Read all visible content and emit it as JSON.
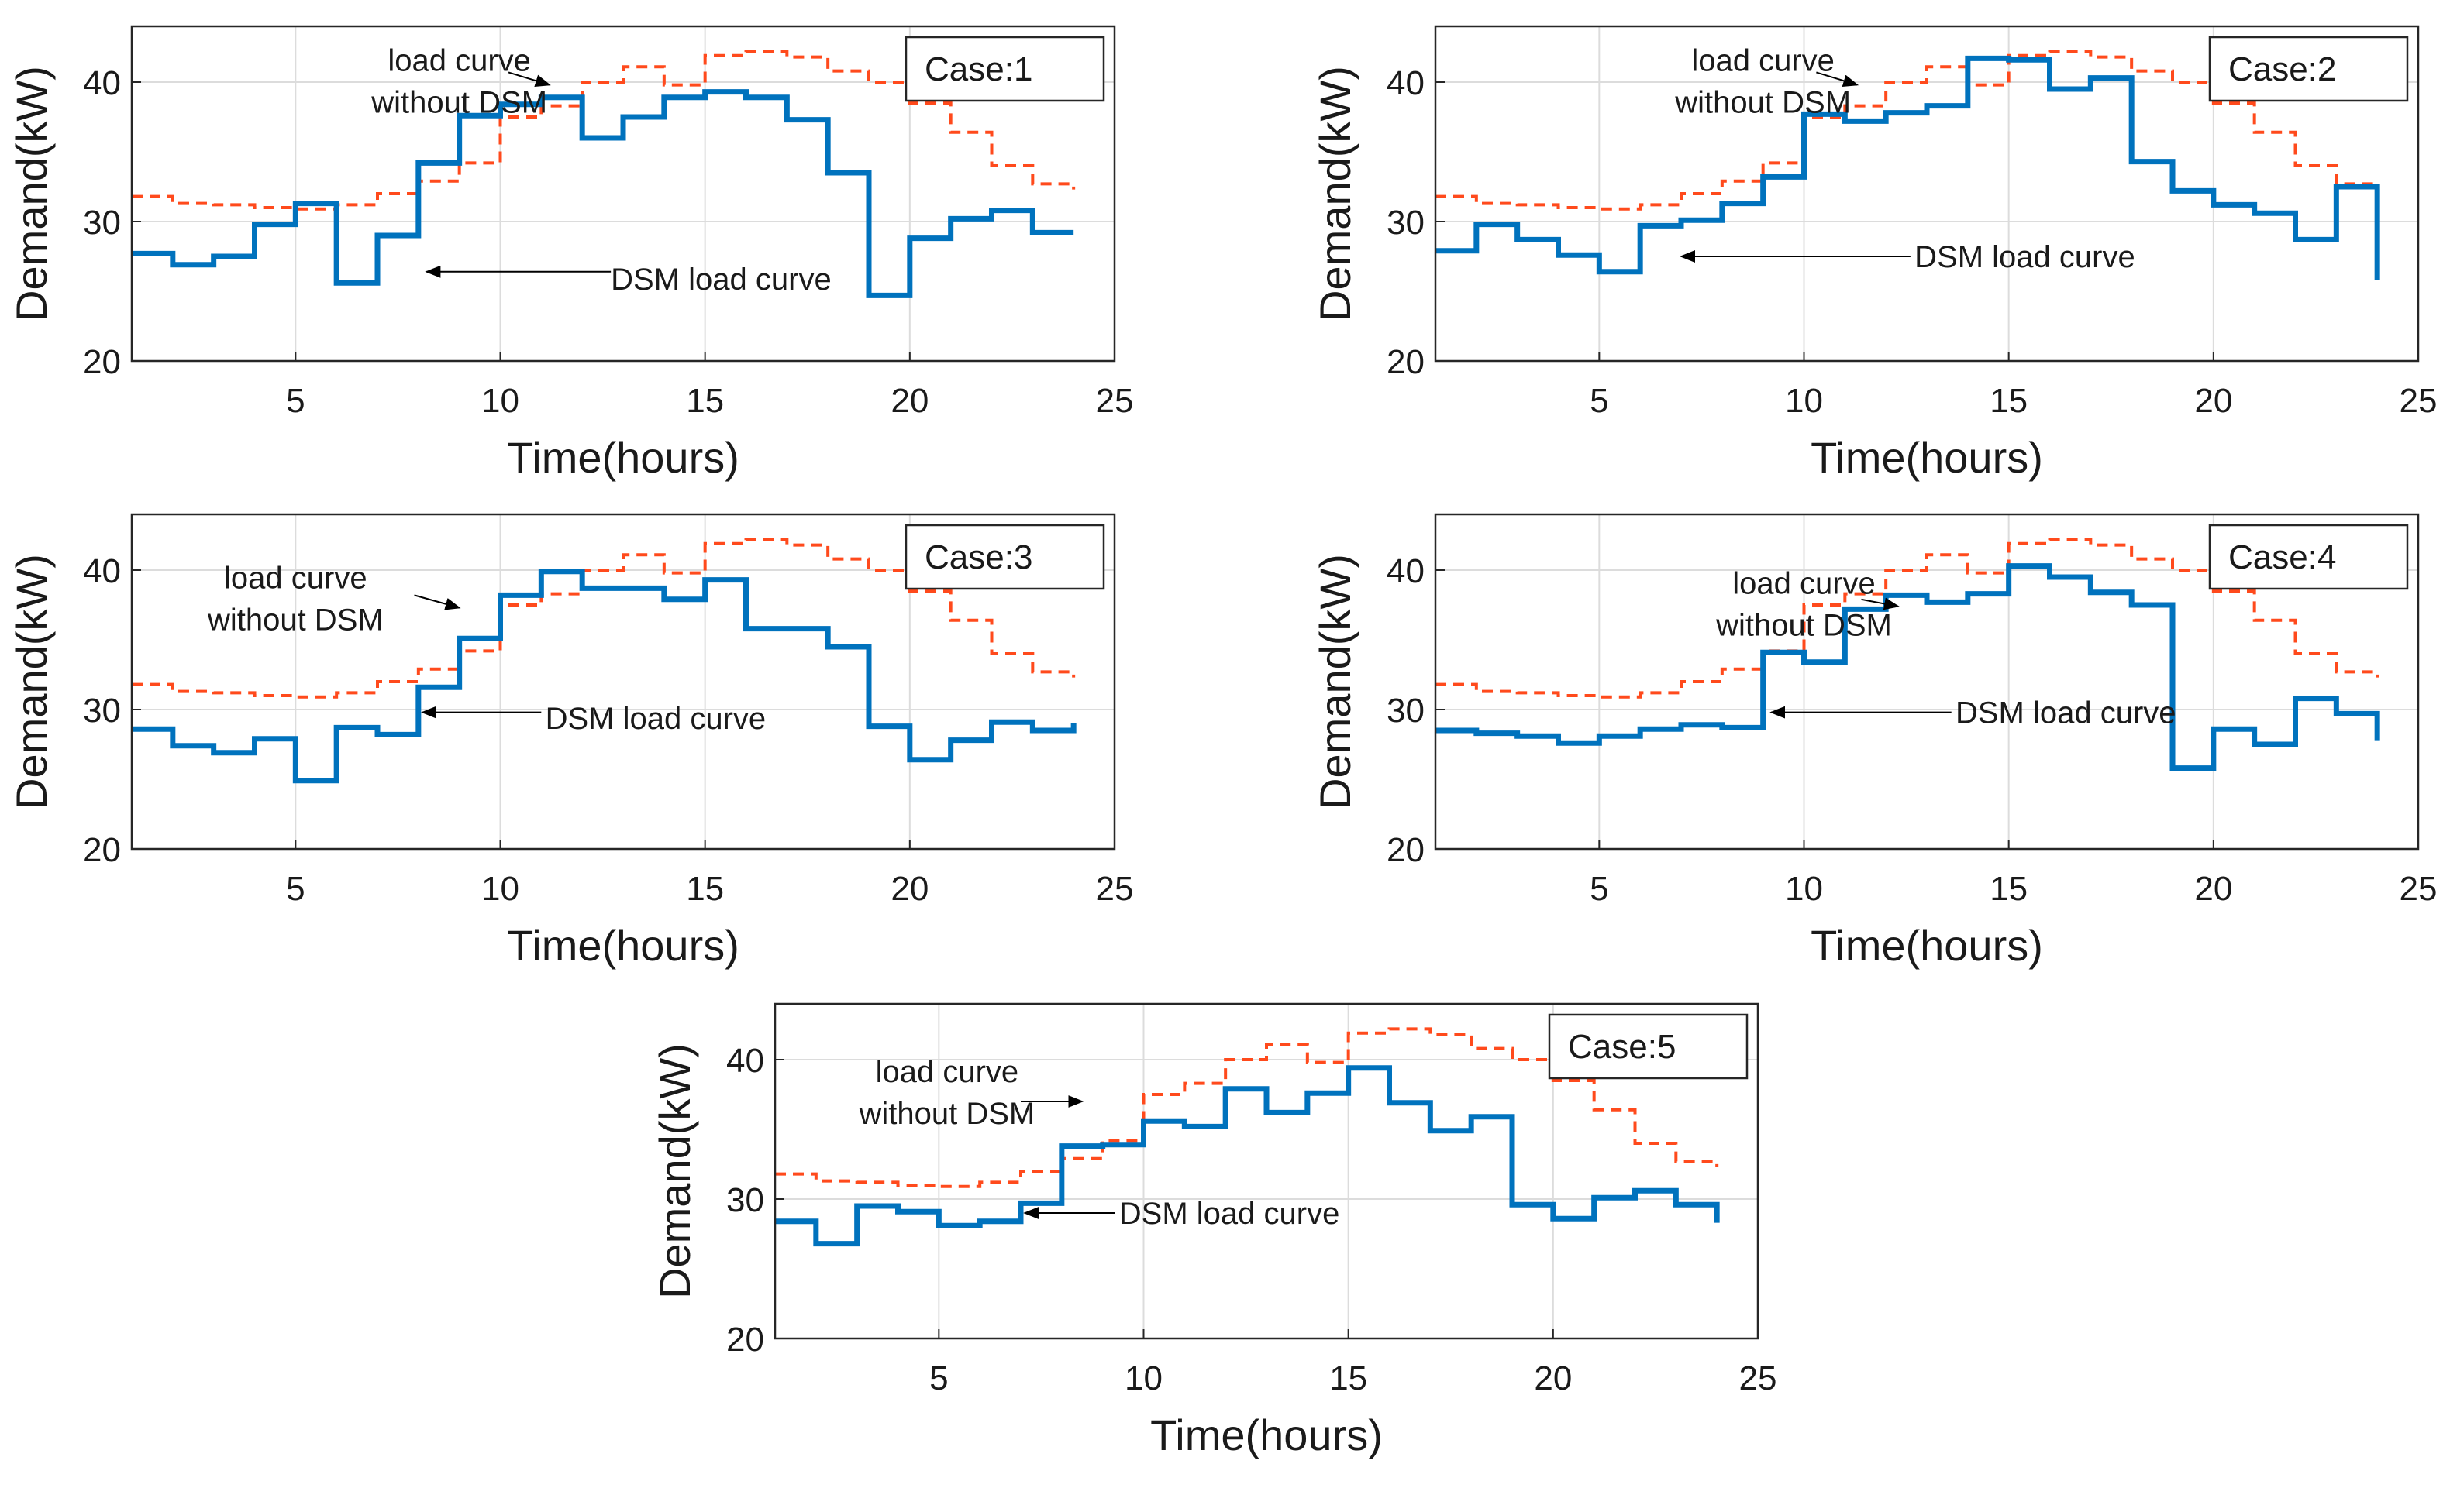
{
  "colors": {
    "without_dsm": "#ff4a1c",
    "dsm": "#0072bd",
    "grid": "#dcdcdc",
    "axis": "#262626",
    "text": "#1a1a1a"
  },
  "chart_data": [
    {
      "type": "line",
      "step": true,
      "case_label": "Case:1",
      "xlabel": "Time(hours)",
      "ylabel": "Demand(kW)",
      "xlim": [
        1,
        25
      ],
      "ylim": [
        20,
        44
      ],
      "xticks": [
        5,
        10,
        15,
        20,
        25
      ],
      "yticks": [
        20,
        30,
        40
      ],
      "grid": true,
      "annotations": {
        "without_line1": "load curve",
        "without_line2": "without DSM",
        "dsm": "DSM load curve"
      },
      "series": [
        {
          "name": "load curve without DSM",
          "style": "dashed",
          "x": [
            1,
            2,
            3,
            4,
            5,
            6,
            7,
            8,
            9,
            10,
            11,
            12,
            13,
            14,
            15,
            16,
            17,
            18,
            19,
            20,
            21,
            22,
            23,
            24
          ],
          "values": [
            31.8,
            31.3,
            31.2,
            31.0,
            30.9,
            31.2,
            32.0,
            32.9,
            34.2,
            37.5,
            38.3,
            40.0,
            41.1,
            39.8,
            41.9,
            42.2,
            41.8,
            40.8,
            40.0,
            38.5,
            36.4,
            34.0,
            32.7,
            32.3
          ]
        },
        {
          "name": "DSM load curve",
          "style": "solid",
          "x": [
            1,
            2,
            3,
            4,
            5,
            6,
            7,
            8,
            9,
            10,
            11,
            12,
            13,
            14,
            15,
            16,
            17,
            18,
            19,
            20,
            21,
            22,
            23,
            24
          ],
          "values": [
            27.7,
            26.9,
            27.5,
            29.8,
            31.3,
            25.6,
            29.0,
            34.2,
            37.6,
            38.4,
            38.9,
            36.0,
            37.5,
            38.9,
            39.3,
            38.9,
            37.3,
            33.5,
            24.7,
            28.8,
            30.2,
            30.8,
            29.2,
            29.2
          ]
        }
      ]
    },
    {
      "type": "line",
      "step": true,
      "case_label": "Case:2",
      "xlabel": "Time(hours)",
      "ylabel": "Demand(kW)",
      "xlim": [
        1,
        25
      ],
      "ylim": [
        20,
        44
      ],
      "xticks": [
        5,
        10,
        15,
        20,
        25
      ],
      "yticks": [
        20,
        30,
        40
      ],
      "grid": true,
      "annotations": {
        "without_line1": "load curve",
        "without_line2": "without DSM",
        "dsm": "DSM load curve"
      },
      "series": [
        {
          "name": "load curve without DSM",
          "style": "dashed",
          "x": [
            1,
            2,
            3,
            4,
            5,
            6,
            7,
            8,
            9,
            10,
            11,
            12,
            13,
            14,
            15,
            16,
            17,
            18,
            19,
            20,
            21,
            22,
            23,
            24
          ],
          "values": [
            31.8,
            31.3,
            31.2,
            31.0,
            30.9,
            31.2,
            32.0,
            32.9,
            34.2,
            37.5,
            38.3,
            40.0,
            41.1,
            39.8,
            41.9,
            42.2,
            41.8,
            40.8,
            40.0,
            38.5,
            36.4,
            34.0,
            32.7,
            32.3
          ]
        },
        {
          "name": "DSM load curve",
          "style": "solid",
          "x": [
            1,
            2,
            3,
            4,
            5,
            6,
            7,
            8,
            9,
            10,
            11,
            12,
            13,
            14,
            15,
            16,
            17,
            18,
            19,
            20,
            21,
            22,
            23,
            24
          ],
          "values": [
            27.9,
            29.8,
            28.7,
            27.6,
            26.4,
            29.7,
            30.1,
            31.3,
            33.2,
            37.7,
            37.2,
            37.8,
            38.3,
            41.7,
            41.6,
            39.5,
            40.3,
            34.3,
            32.2,
            31.2,
            30.6,
            28.7,
            32.5,
            25.8
          ]
        }
      ]
    },
    {
      "type": "line",
      "step": true,
      "case_label": "Case:3",
      "xlabel": "Time(hours)",
      "ylabel": "Demand(kW)",
      "xlim": [
        1,
        25
      ],
      "ylim": [
        20,
        44
      ],
      "xticks": [
        5,
        10,
        15,
        20,
        25
      ],
      "yticks": [
        20,
        30,
        40
      ],
      "grid": true,
      "annotations": {
        "without_line1": "load curve",
        "without_line2": "without DSM",
        "dsm": "DSM load curve"
      },
      "series": [
        {
          "name": "load curve without DSM",
          "style": "dashed",
          "x": [
            1,
            2,
            3,
            4,
            5,
            6,
            7,
            8,
            9,
            10,
            11,
            12,
            13,
            14,
            15,
            16,
            17,
            18,
            19,
            20,
            21,
            22,
            23,
            24
          ],
          "values": [
            31.8,
            31.3,
            31.2,
            31.0,
            30.9,
            31.2,
            32.0,
            32.9,
            34.2,
            37.5,
            38.3,
            40.0,
            41.1,
            39.8,
            41.9,
            42.2,
            41.8,
            40.8,
            40.0,
            38.5,
            36.4,
            34.0,
            32.7,
            32.3
          ]
        },
        {
          "name": "DSM load curve",
          "style": "solid",
          "x": [
            1,
            2,
            3,
            4,
            5,
            6,
            7,
            8,
            9,
            10,
            11,
            12,
            13,
            14,
            15,
            16,
            17,
            18,
            19,
            20,
            21,
            22,
            23,
            24
          ],
          "values": [
            28.6,
            27.4,
            26.9,
            27.9,
            24.9,
            28.7,
            28.2,
            31.6,
            35.1,
            38.2,
            39.9,
            38.7,
            38.7,
            37.9,
            39.3,
            35.8,
            35.8,
            34.5,
            28.8,
            26.4,
            27.8,
            29.1,
            28.5,
            29.0
          ]
        }
      ]
    },
    {
      "type": "line",
      "step": true,
      "case_label": "Case:4",
      "xlabel": "Time(hours)",
      "ylabel": "Demand(kW)",
      "xlim": [
        1,
        25
      ],
      "ylim": [
        20,
        44
      ],
      "xticks": [
        5,
        10,
        15,
        20,
        25
      ],
      "yticks": [
        20,
        30,
        40
      ],
      "grid": true,
      "annotations": {
        "without_line1": "load curve",
        "without_line2": "without DSM",
        "dsm": "DSM load curve"
      },
      "series": [
        {
          "name": "load curve without DSM",
          "style": "dashed",
          "x": [
            1,
            2,
            3,
            4,
            5,
            6,
            7,
            8,
            9,
            10,
            11,
            12,
            13,
            14,
            15,
            16,
            17,
            18,
            19,
            20,
            21,
            22,
            23,
            24
          ],
          "values": [
            31.8,
            31.3,
            31.2,
            31.0,
            30.9,
            31.2,
            32.0,
            32.9,
            34.2,
            37.5,
            38.3,
            40.0,
            41.1,
            39.8,
            41.9,
            42.2,
            41.8,
            40.8,
            40.0,
            38.5,
            36.4,
            34.0,
            32.7,
            32.3
          ]
        },
        {
          "name": "DSM load curve",
          "style": "solid",
          "x": [
            1,
            2,
            3,
            4,
            5,
            6,
            7,
            8,
            9,
            10,
            11,
            12,
            13,
            14,
            15,
            16,
            17,
            18,
            19,
            20,
            21,
            22,
            23,
            24
          ],
          "values": [
            28.5,
            28.3,
            28.1,
            27.6,
            28.1,
            28.6,
            28.9,
            28.7,
            34.1,
            33.4,
            37.2,
            38.2,
            37.7,
            38.3,
            40.3,
            39.5,
            38.4,
            37.5,
            25.8,
            28.6,
            27.5,
            30.8,
            29.7,
            27.8
          ]
        }
      ]
    },
    {
      "type": "line",
      "step": true,
      "case_label": "Case:5",
      "xlabel": "Time(hours)",
      "ylabel": "Demand(kW)",
      "xlim": [
        1,
        25
      ],
      "ylim": [
        20,
        44
      ],
      "xticks": [
        5,
        10,
        15,
        20,
        25
      ],
      "yticks": [
        20,
        30,
        40
      ],
      "grid": true,
      "annotations": {
        "without_line1": "load curve",
        "without_line2": "without DSM",
        "dsm": "DSM load curve"
      },
      "series": [
        {
          "name": "load curve without DSM",
          "style": "dashed",
          "x": [
            1,
            2,
            3,
            4,
            5,
            6,
            7,
            8,
            9,
            10,
            11,
            12,
            13,
            14,
            15,
            16,
            17,
            18,
            19,
            20,
            21,
            22,
            23,
            24
          ],
          "values": [
            31.8,
            31.3,
            31.2,
            31.0,
            30.9,
            31.2,
            32.0,
            32.9,
            34.2,
            37.5,
            38.3,
            40.0,
            41.1,
            39.8,
            41.9,
            42.2,
            41.8,
            40.8,
            40.0,
            38.5,
            36.4,
            34.0,
            32.7,
            32.3
          ]
        },
        {
          "name": "DSM load curve",
          "style": "solid",
          "x": [
            1,
            2,
            3,
            4,
            5,
            6,
            7,
            8,
            9,
            10,
            11,
            12,
            13,
            14,
            15,
            16,
            17,
            18,
            19,
            20,
            21,
            22,
            23,
            24
          ],
          "values": [
            28.4,
            26.8,
            29.5,
            29.1,
            28.1,
            28.4,
            29.7,
            33.8,
            33.9,
            35.6,
            35.2,
            37.9,
            36.2,
            37.6,
            39.4,
            36.9,
            34.9,
            35.9,
            29.6,
            28.6,
            30.1,
            30.6,
            29.6,
            28.3
          ]
        }
      ]
    }
  ]
}
